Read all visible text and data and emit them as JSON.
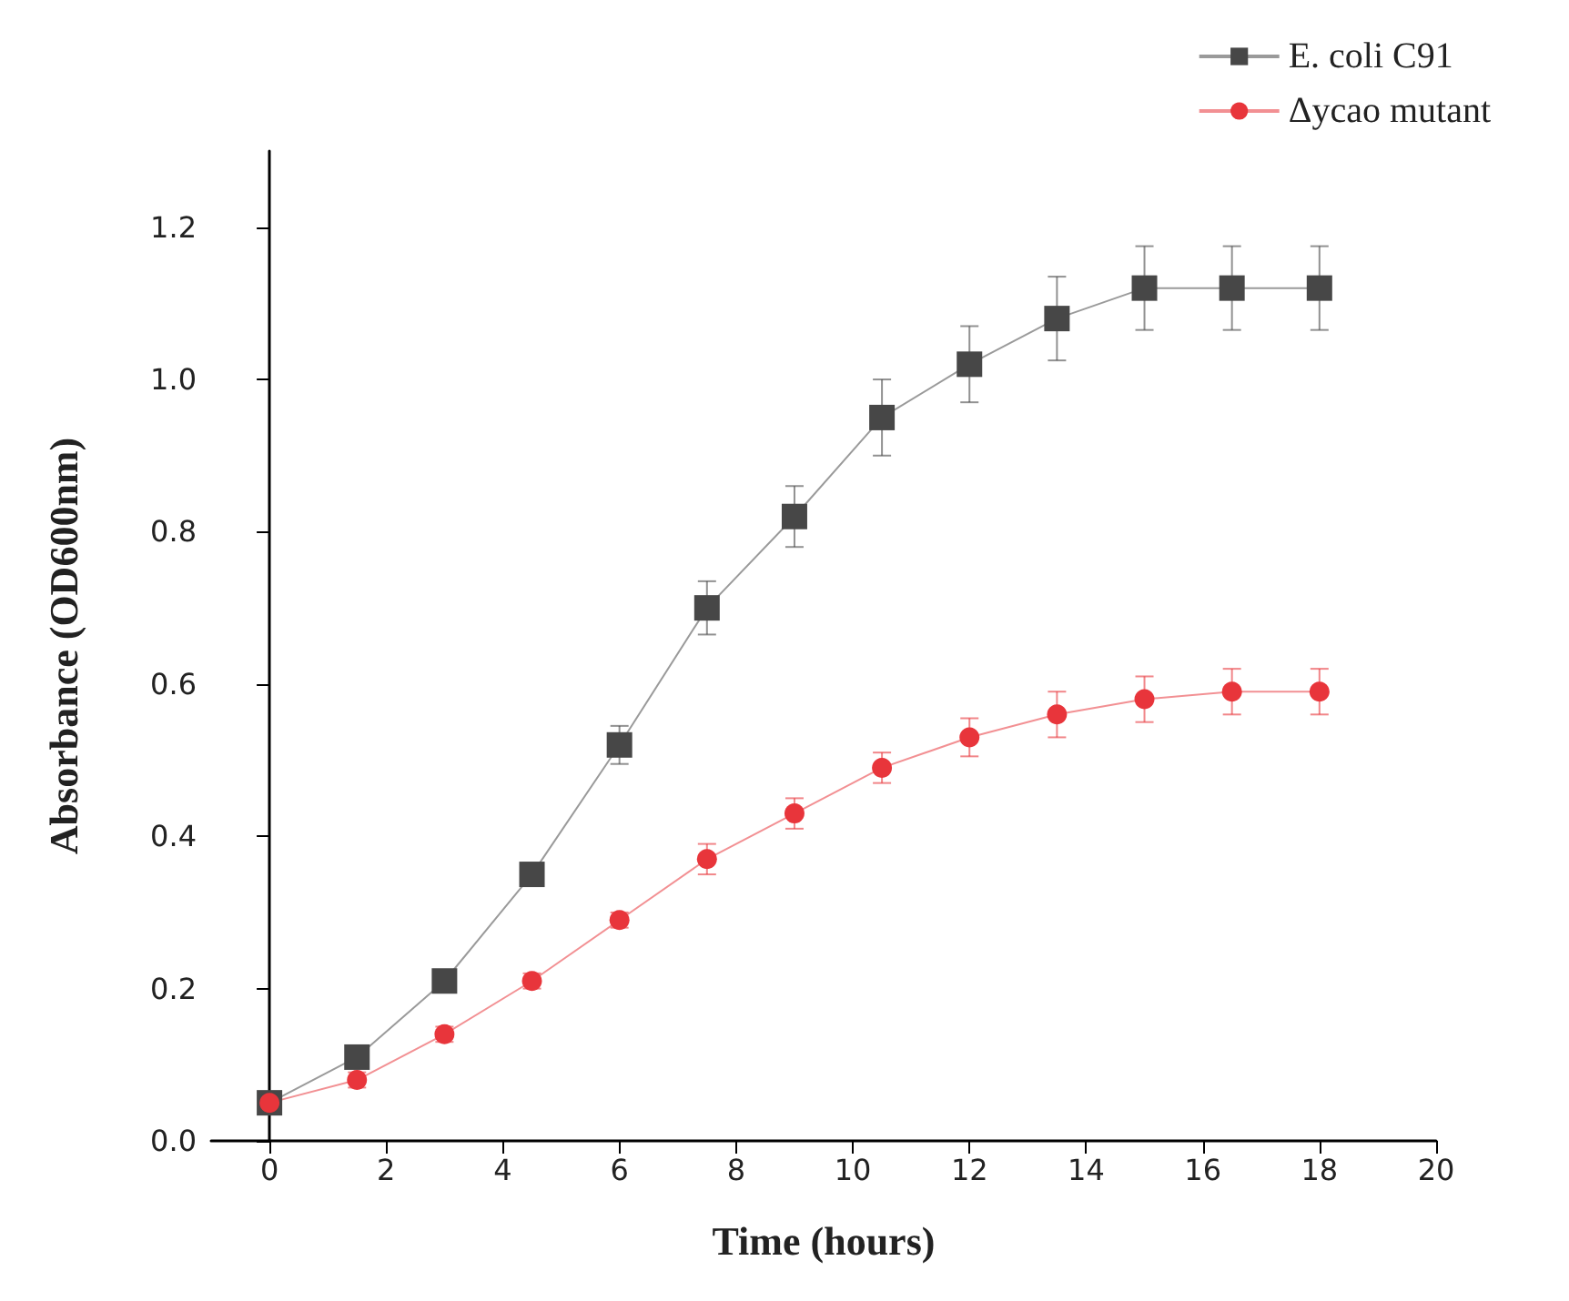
{
  "chart_data": {
    "type": "line",
    "xlabel": "Time (hours)",
    "ylabel": "Absorbance (OD600nm)",
    "xlim": [
      -1,
      20
    ],
    "xticks": [
      0,
      2,
      4,
      6,
      8,
      10,
      12,
      14,
      16,
      18,
      20
    ],
    "ylim": [
      0,
      1.3
    ],
    "yticks": [
      {
        "value": 0,
        "label": "0.0"
      },
      0.2,
      0.4,
      0.6,
      0.8,
      {
        "value": 1,
        "label": "1.0"
      },
      1.2
    ],
    "x": [
      0,
      1.5,
      3,
      4.5,
      6,
      7.5,
      9,
      10.5,
      12,
      13.5,
      15,
      16.5,
      18
    ],
    "series": [
      {
        "name": "E. coli C91",
        "color": "#474747",
        "marker": "square",
        "values": [
          0.05,
          0.11,
          0.21,
          0.35,
          0.52,
          0.7,
          0.82,
          0.95,
          1.02,
          1.08,
          1.12,
          1.12,
          1.12
        ],
        "errors": [
          0.01,
          0.01,
          0.01,
          0.015,
          0.025,
          0.035,
          0.04,
          0.05,
          0.05,
          0.055,
          0.055,
          0.055,
          0.055
        ]
      },
      {
        "name": "Δycao mutant",
        "color": "#e8353b",
        "marker": "circle",
        "values": [
          0.05,
          0.08,
          0.14,
          0.21,
          0.29,
          0.37,
          0.43,
          0.49,
          0.53,
          0.56,
          0.58,
          0.59,
          0.59
        ],
        "errors": [
          0.01,
          0.01,
          0.01,
          0.01,
          0.01,
          0.02,
          0.02,
          0.02,
          0.025,
          0.03,
          0.03,
          0.03,
          0.03
        ]
      }
    ],
    "legend": "top right",
    "grid": false,
    "line_style": "solid"
  }
}
